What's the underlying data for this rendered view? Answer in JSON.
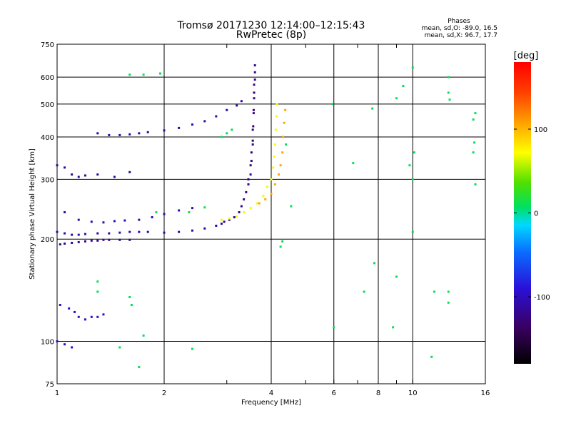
{
  "chart_data": {
    "type": "scatter",
    "title": "Tromsø 20171230 12:14:00–12:15:43",
    "subtitle": "RwPretec (8p)",
    "stats": {
      "heading": "Phases",
      "line1": "mean, sd,O: -89.0, 16.5",
      "line2": "mean, sd,X:  96.7, 17.7"
    },
    "xlabel": "Frequency [MHz]",
    "ylabel": "Stationary phase Virtual Height [km]",
    "x_scale": "log",
    "y_scale": "log",
    "xlim": [
      1,
      16
    ],
    "ylim": [
      75,
      750
    ],
    "x_ticks": [
      1,
      2,
      4,
      6,
      8,
      10,
      16
    ],
    "x_tick_labels": [
      "1",
      "2",
      "4",
      "6",
      "8",
      "10",
      "16"
    ],
    "x_minor_ticks": [
      3,
      5,
      7,
      9
    ],
    "y_ticks": [
      75,
      100,
      200,
      300,
      400,
      500,
      600,
      750
    ],
    "y_tick_labels": [
      "75",
      "100",
      "200",
      "300",
      "400",
      "500",
      "600",
      "750"
    ],
    "grid": true,
    "colorbar": {
      "label": "[deg]",
      "range": [
        -180,
        180
      ],
      "ticks": [
        100,
        0,
        -100
      ],
      "tick_labels": [
        "100",
        "0",
        "-100"
      ]
    },
    "series": [
      {
        "points": [
          [
            1.02,
            193
          ],
          [
            1.05,
            194
          ],
          [
            1.1,
            195
          ],
          [
            1.15,
            196
          ],
          [
            1.2,
            197
          ],
          [
            1.25,
            198
          ],
          [
            1.3,
            198
          ],
          [
            1.35,
            199
          ],
          [
            1.4,
            199
          ],
          [
            1.5,
            199
          ],
          [
            1.6,
            199
          ]
        ],
        "phase": -120
      },
      {
        "points": [
          [
            1.0,
            210
          ],
          [
            1.05,
            208
          ],
          [
            1.1,
            206
          ],
          [
            1.15,
            206
          ],
          [
            1.2,
            207
          ],
          [
            1.3,
            208
          ],
          [
            1.4,
            208
          ],
          [
            1.5,
            209
          ],
          [
            1.6,
            210
          ],
          [
            1.7,
            210
          ],
          [
            1.8,
            210
          ],
          [
            2.0,
            209
          ],
          [
            2.2,
            210
          ],
          [
            2.4,
            212
          ],
          [
            2.6,
            215
          ],
          [
            2.8,
            219
          ],
          [
            2.9,
            222
          ]
        ],
        "phase": -110
      },
      {
        "points": [
          [
            1.05,
            240
          ],
          [
            1.15,
            228
          ],
          [
            1.25,
            225
          ],
          [
            1.35,
            224
          ],
          [
            1.45,
            226
          ],
          [
            1.55,
            227
          ],
          [
            1.7,
            228
          ],
          [
            1.85,
            232
          ],
          [
            2.0,
            237
          ],
          [
            2.2,
            243
          ],
          [
            2.4,
            247
          ]
        ],
        "phase": -105
      },
      {
        "points": [
          [
            1.3,
            410
          ],
          [
            1.4,
            405
          ],
          [
            1.5,
            405
          ],
          [
            1.6,
            407
          ],
          [
            1.7,
            410
          ],
          [
            1.8,
            413
          ],
          [
            2.0,
            418
          ],
          [
            2.2,
            425
          ],
          [
            2.4,
            435
          ],
          [
            2.6,
            445
          ],
          [
            2.8,
            460
          ],
          [
            3.0,
            480
          ],
          [
            3.2,
            495
          ],
          [
            3.3,
            510
          ]
        ],
        "phase": -110
      },
      {
        "points": [
          [
            2.95,
            225
          ],
          [
            3.05,
            228
          ],
          [
            3.15,
            232
          ],
          [
            3.25,
            240
          ],
          [
            3.3,
            250
          ],
          [
            3.35,
            262
          ],
          [
            3.4,
            275
          ],
          [
            3.45,
            290
          ],
          [
            3.5,
            310
          ],
          [
            3.52,
            340
          ],
          [
            3.55,
            380
          ],
          [
            3.55,
            420
          ],
          [
            3.57,
            470
          ],
          [
            3.58,
            520
          ],
          [
            3.58,
            570
          ],
          [
            3.6,
            620
          ],
          [
            3.6,
            650
          ]
        ],
        "phase": -120
      },
      {
        "points": [
          [
            3.45,
            300
          ],
          [
            3.5,
            330
          ],
          [
            3.52,
            360
          ],
          [
            3.55,
            390
          ],
          [
            3.56,
            430
          ],
          [
            3.57,
            480
          ],
          [
            3.58,
            540
          ],
          [
            3.6,
            590
          ]
        ],
        "phase": -130
      },
      {
        "points": [
          [
            2.9,
            228
          ],
          [
            3.05,
            230
          ],
          [
            3.2,
            233
          ],
          [
            3.35,
            240
          ],
          [
            3.5,
            247
          ],
          [
            3.65,
            255
          ],
          [
            3.8,
            268
          ],
          [
            3.9,
            285
          ],
          [
            4.0,
            300
          ],
          [
            4.05,
            325
          ],
          [
            4.08,
            350
          ],
          [
            4.1,
            380
          ],
          [
            4.12,
            420
          ],
          [
            4.14,
            460
          ],
          [
            4.15,
            500
          ]
        ],
        "phase": 70
      },
      {
        "points": [
          [
            3.7,
            255
          ],
          [
            3.85,
            262
          ],
          [
            4.0,
            272
          ],
          [
            4.1,
            290
          ],
          [
            4.2,
            310
          ],
          [
            4.25,
            330
          ],
          [
            4.3,
            360
          ],
          [
            4.32,
            400
          ],
          [
            4.35,
            440
          ],
          [
            4.38,
            480
          ]
        ],
        "phase": 105
      },
      {
        "points": [
          [
            1.02,
            128
          ],
          [
            1.08,
            125
          ],
          [
            1.12,
            122
          ],
          [
            1.15,
            118
          ],
          [
            1.2,
            116
          ],
          [
            1.25,
            118
          ],
          [
            1.3,
            118
          ],
          [
            1.35,
            120
          ]
        ],
        "phase": -95
      },
      {
        "points": [
          [
            1.0,
            100
          ],
          [
            1.05,
            98
          ],
          [
            1.1,
            96
          ]
        ],
        "phase": -100
      },
      {
        "points": [
          [
            1.0,
            330
          ],
          [
            1.05,
            325
          ],
          [
            1.1,
            310
          ],
          [
            1.15,
            305
          ],
          [
            1.2,
            308
          ],
          [
            1.3,
            310
          ],
          [
            1.45,
            305
          ],
          [
            1.6,
            315
          ]
        ],
        "phase": -115
      },
      {
        "points": [
          [
            1.6,
            610
          ],
          [
            1.75,
            610
          ],
          [
            1.95,
            615
          ],
          [
            2.9,
            400
          ],
          [
            3.0,
            410
          ],
          [
            3.1,
            420
          ],
          [
            4.25,
            190
          ],
          [
            4.3,
            197
          ],
          [
            4.4,
            380
          ],
          [
            4.55,
            250
          ],
          [
            5.95,
            500
          ],
          [
            6.0,
            110
          ],
          [
            6.8,
            335
          ],
          [
            7.3,
            140
          ],
          [
            7.7,
            485
          ],
          [
            7.8,
            170
          ],
          [
            8.8,
            110
          ],
          [
            9.0,
            155
          ],
          [
            9.0,
            520
          ],
          [
            9.4,
            565
          ],
          [
            9.8,
            330
          ],
          [
            10.0,
            210
          ],
          [
            10.0,
            300
          ],
          [
            10.0,
            640
          ],
          [
            10.1,
            360
          ],
          [
            11.3,
            90
          ],
          [
            11.5,
            140
          ],
          [
            12.6,
            140
          ],
          [
            12.6,
            130
          ],
          [
            12.6,
            600
          ],
          [
            12.6,
            540
          ],
          [
            12.7,
            515
          ],
          [
            14.8,
            450
          ],
          [
            15.0,
            470
          ],
          [
            14.9,
            385
          ],
          [
            14.8,
            360
          ],
          [
            15.0,
            290
          ],
          [
            1.3,
            140
          ],
          [
            1.6,
            135
          ],
          [
            1.62,
            128
          ],
          [
            2.4,
            95
          ],
          [
            1.75,
            104
          ],
          [
            1.7,
            84
          ],
          [
            1.5,
            96
          ],
          [
            2.35,
            240
          ],
          [
            2.6,
            248
          ],
          [
            1.3,
            150
          ],
          [
            1.9,
            240
          ]
        ],
        "phase": 10
      }
    ]
  }
}
